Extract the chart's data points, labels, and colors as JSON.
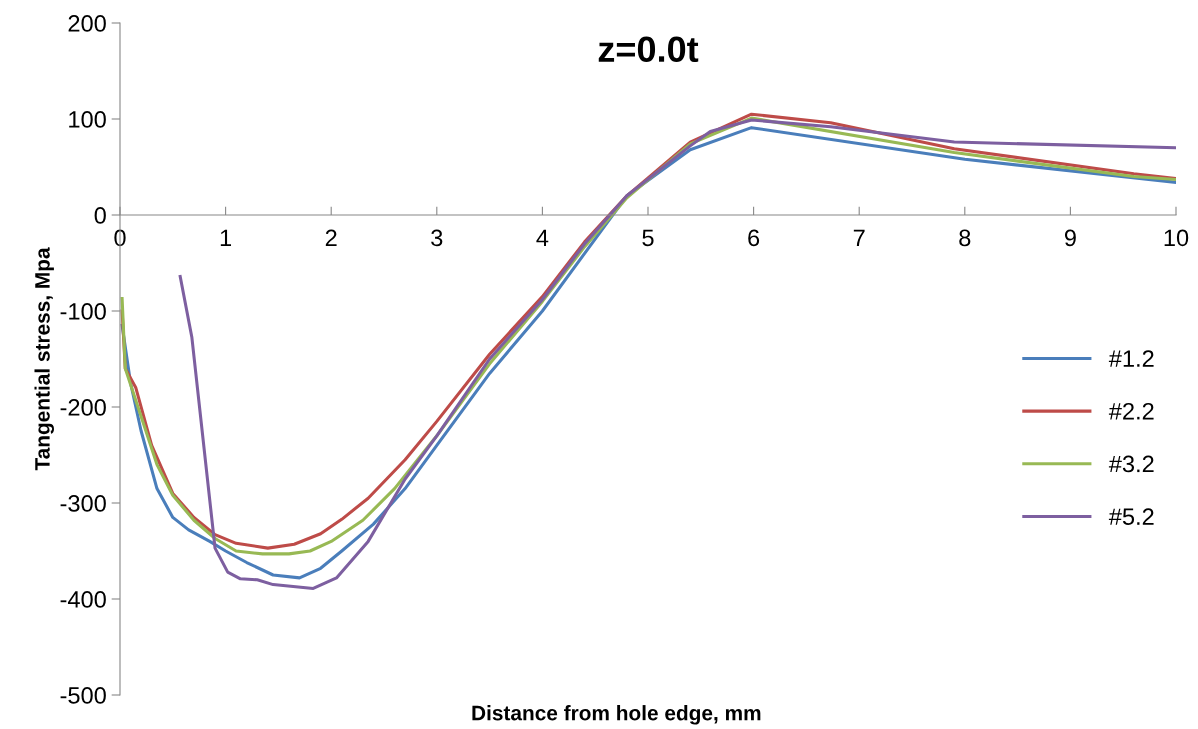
{
  "chart_data": {
    "type": "line",
    "title": "z=0.0t",
    "xlabel": "Distance from hole edge, mm",
    "ylabel": "Tangential stress, Mpa",
    "xlim": [
      0,
      10
    ],
    "xticks": [
      0,
      1,
      2,
      3,
      4,
      5,
      6,
      7,
      8,
      9,
      10
    ],
    "ylim": [
      -500,
      200
    ],
    "yticks": [
      -500,
      -400,
      -300,
      -200,
      -100,
      0,
      100,
      200
    ],
    "grid": false,
    "legend": "right",
    "marker": "none",
    "line_style": "solid",
    "series": [
      {
        "name": "#1.2",
        "color": "#4a7ebb",
        "x": [
          0.02,
          0.1,
          0.2,
          0.35,
          0.5,
          0.65,
          0.85,
          1.0,
          1.2,
          1.45,
          1.7,
          1.9,
          2.1,
          2.4,
          2.7,
          3.0,
          3.5,
          4.0,
          4.4,
          4.8,
          5.4,
          5.98,
          8.0,
          10
        ],
        "values": [
          -115,
          -175,
          -225,
          -285,
          -315,
          -328,
          -340,
          -350,
          -362,
          -375,
          -378,
          -368,
          -350,
          -322,
          -285,
          -240,
          -165,
          -100,
          -40,
          20,
          68,
          91,
          58,
          34
        ]
      },
      {
        "name": "#2.2",
        "color": "#be4b48",
        "x": [
          0.02,
          0.05,
          0.15,
          0.3,
          0.5,
          0.7,
          0.9,
          1.1,
          1.4,
          1.65,
          1.9,
          2.1,
          2.35,
          2.7,
          3.0,
          3.5,
          4.0,
          4.4,
          4.8,
          5.4,
          5.98,
          6.73,
          7.9,
          9.6,
          10
        ],
        "values": [
          -100,
          -160,
          -180,
          -240,
          -290,
          -315,
          -333,
          -342,
          -347,
          -343,
          -332,
          -317,
          -295,
          -255,
          -215,
          -145,
          -85,
          -28,
          20,
          76,
          105,
          96,
          69,
          43,
          38
        ]
      },
      {
        "name": "#3.2",
        "color": "#98b954",
        "x": [
          0.02,
          0.05,
          0.2,
          0.35,
          0.5,
          0.7,
          0.9,
          1.1,
          1.35,
          1.6,
          1.8,
          2.0,
          2.3,
          2.6,
          3.0,
          3.5,
          4.0,
          4.4,
          4.8,
          5.4,
          5.98,
          7.9,
          9.6,
          10
        ],
        "values": [
          -87,
          -160,
          -210,
          -260,
          -292,
          -318,
          -337,
          -350,
          -353,
          -353,
          -350,
          -340,
          -318,
          -285,
          -230,
          -155,
          -90,
          -33,
          18,
          74,
          101,
          65,
          40,
          37
        ]
      },
      {
        "name": "#5.2",
        "color": "#7d5fa0",
        "x": [
          0.57,
          0.68,
          0.9,
          1.02,
          1.14,
          1.3,
          1.45,
          1.83,
          2.05,
          2.35,
          2.7,
          3.0,
          3.5,
          4.0,
          4.4,
          4.8,
          5.4,
          5.59,
          5.98,
          6.73,
          7.9,
          10
        ],
        "values": [
          -64,
          -127,
          -347,
          -372,
          -379,
          -380,
          -385,
          -389,
          -378,
          -340,
          -275,
          -230,
          -150,
          -88,
          -30,
          20,
          72,
          87,
          99,
          92,
          76,
          70
        ]
      }
    ]
  }
}
